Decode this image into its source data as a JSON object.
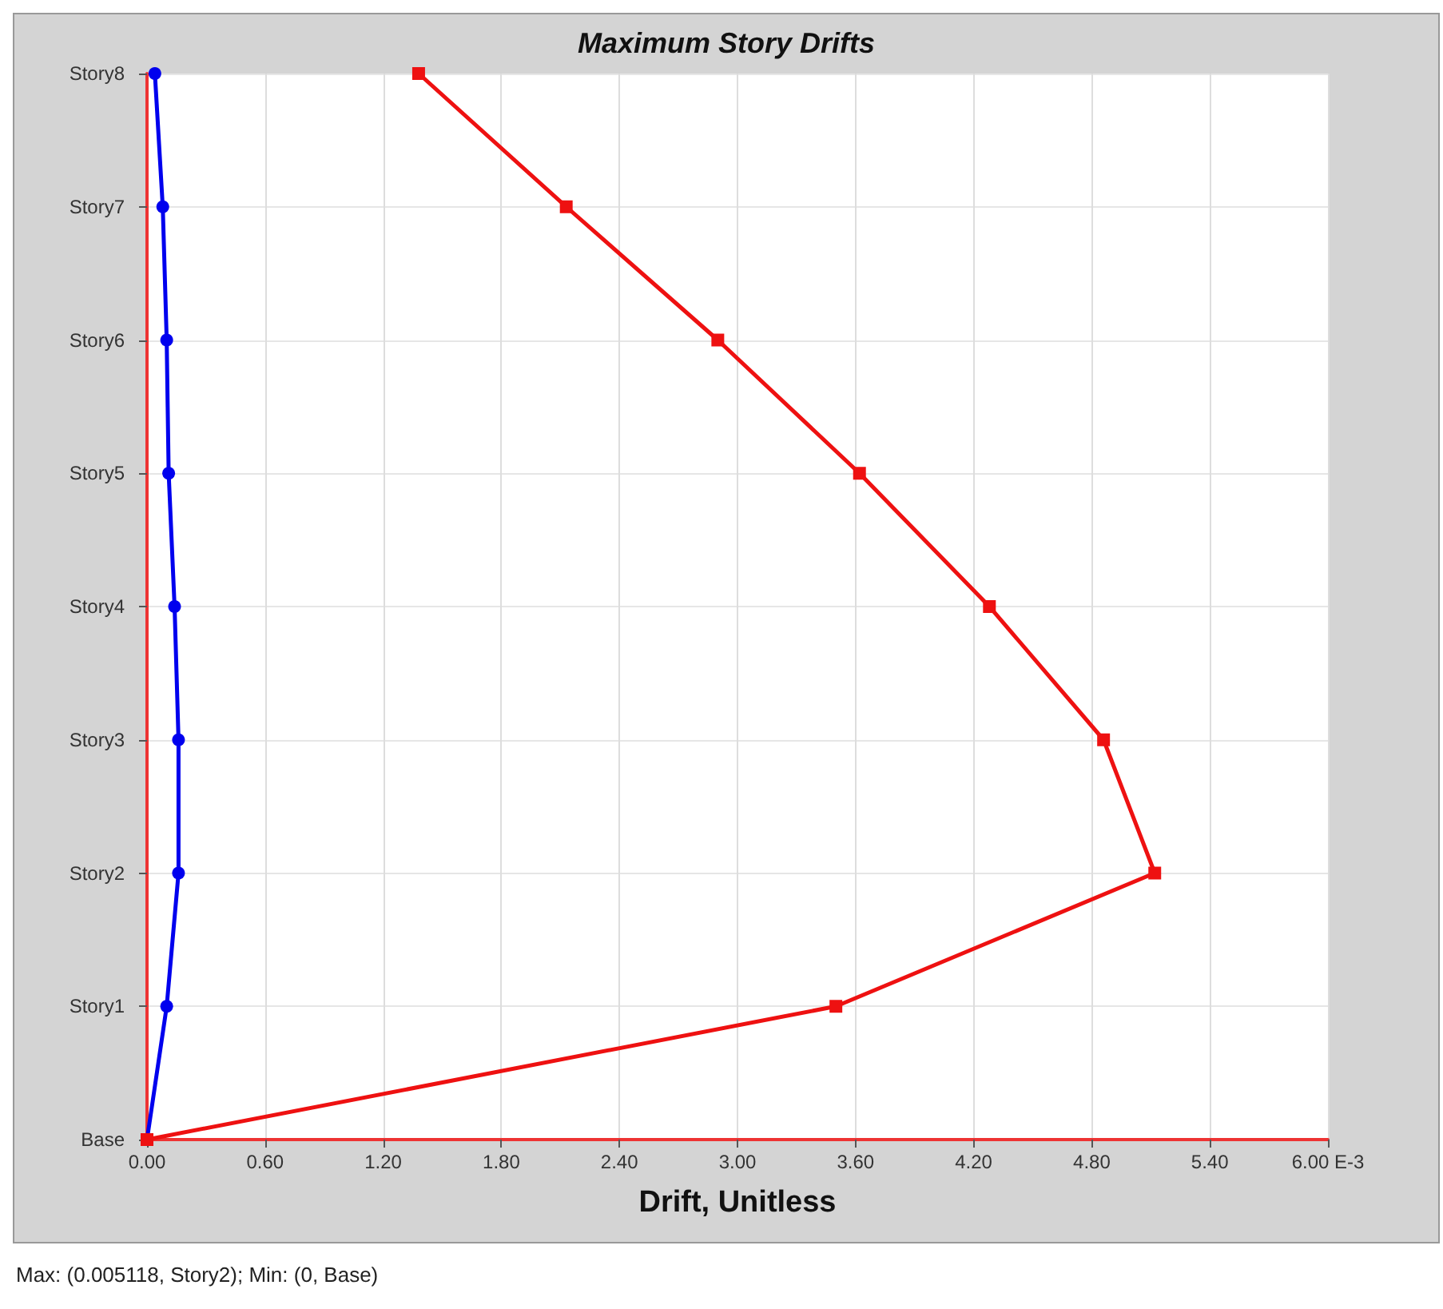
{
  "chart_data": {
    "type": "line",
    "title": "Maximum Story Drifts",
    "xlabel": "Drift, Unitless",
    "orientation": "horizontal",
    "categories": [
      "Story8",
      "Story7",
      "Story6",
      "Story5",
      "Story4",
      "Story3",
      "Story2",
      "Story1",
      "Base"
    ],
    "series": [
      {
        "color": "#0000ee",
        "marker": "circle",
        "values": [
          0.04,
          0.08,
          0.1,
          0.11,
          0.14,
          0.16,
          0.16,
          0.1,
          0
        ]
      },
      {
        "color": "#ee1111",
        "marker": "square",
        "values": [
          1.38,
          2.13,
          2.9,
          3.62,
          4.28,
          4.86,
          5.12,
          3.5,
          0
        ]
      }
    ],
    "xlim": [
      0,
      6
    ],
    "xticks": [
      {
        "value": 0,
        "label": "0.00"
      },
      {
        "value": 0.6,
        "label": "0.60"
      },
      {
        "value": 1.2,
        "label": "1.20"
      },
      {
        "value": 1.8,
        "label": "1.80"
      },
      {
        "value": 2.4,
        "label": "2.40"
      },
      {
        "value": 3,
        "label": "3.00"
      },
      {
        "value": 3.6,
        "label": "3.60"
      },
      {
        "value": 4.2,
        "label": "4.20"
      },
      {
        "value": 4.8,
        "label": "4.80"
      },
      {
        "value": 5.4,
        "label": "5.40"
      },
      {
        "value": 6,
        "label": "6.00 E-3"
      }
    ],
    "grid": true,
    "annotations": [
      "Max: (0.005118, Story2);   Min: (0, Base)"
    ]
  }
}
